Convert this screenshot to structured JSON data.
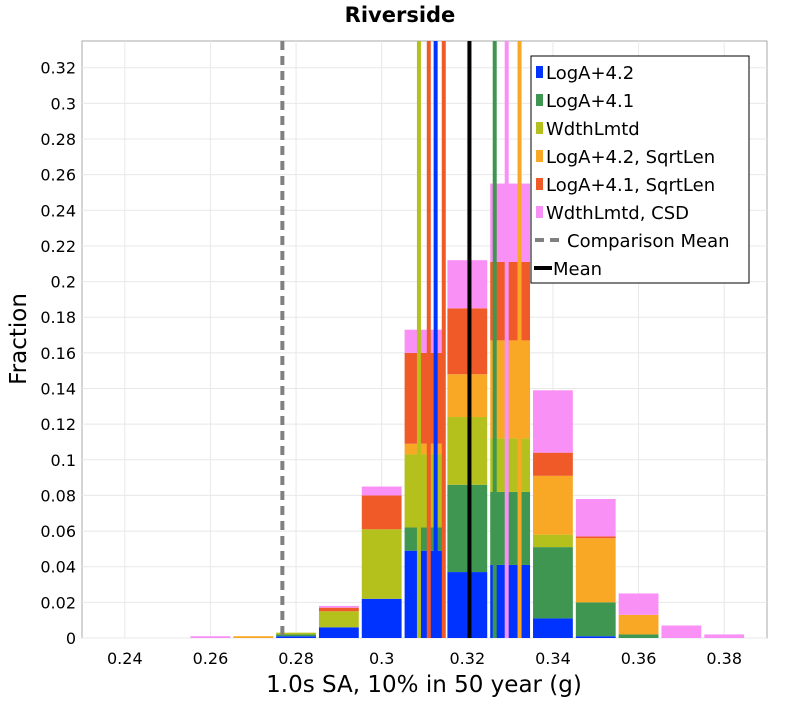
{
  "chart_data": {
    "type": "bar",
    "stacked": true,
    "title": "Riverside",
    "xlabel": "1.0s SA, 10% in 50 year (g)",
    "ylabel": "Fraction",
    "xlim": [
      0.23,
      0.39
    ],
    "ylim": [
      0,
      0.335
    ],
    "xticks": [
      0.24,
      0.26,
      0.28,
      0.3,
      0.32,
      0.34,
      0.36,
      0.38
    ],
    "xtick_labels": [
      "0.24",
      "0.26",
      "0.28",
      "0.3",
      "0.32",
      "0.34",
      "0.36",
      "0.38"
    ],
    "yticks": [
      0,
      0.02,
      0.04,
      0.06,
      0.08,
      0.1,
      0.12,
      0.14,
      0.16,
      0.18,
      0.2,
      0.22,
      0.24,
      0.26,
      0.28,
      0.3,
      0.32
    ],
    "ytick_labels": [
      "0",
      "0.02",
      "0.04",
      "0.06",
      "0.08",
      "0.1",
      "0.12",
      "0.14",
      "0.16",
      "0.18",
      "0.2",
      "0.22",
      "0.24",
      "0.26",
      "0.28",
      "0.3",
      "0.32"
    ],
    "grid": true,
    "legend_position": "top-right",
    "bin_width": 0.01,
    "bin_centers": [
      0.24,
      0.25,
      0.26,
      0.27,
      0.28,
      0.29,
      0.3,
      0.31,
      0.32,
      0.33,
      0.34,
      0.35,
      0.36,
      0.37,
      0.38
    ],
    "series": [
      {
        "name": "LogA+4.2",
        "color": "#0033ff",
        "values": [
          0,
          0,
          0,
          0,
          0.001,
          0.006,
          0.022,
          0.049,
          0.037,
          0.041,
          0.011,
          0.001,
          0,
          0,
          0
        ]
      },
      {
        "name": "LogA+4.1",
        "color": "#3f9650",
        "values": [
          0,
          0,
          0,
          0,
          0.001,
          0,
          0,
          0.013,
          0.049,
          0.041,
          0.04,
          0.019,
          0.002,
          0,
          0
        ]
      },
      {
        "name": "WdthLmtd",
        "color": "#b4c01c",
        "values": [
          0,
          0,
          0,
          0,
          0.001,
          0.009,
          0.039,
          0.041,
          0.038,
          0.03,
          0.007,
          0,
          0,
          0,
          0
        ]
      },
      {
        "name": "LogA+4.2, SqrtLen",
        "color": "#f9a825",
        "values": [
          0,
          0,
          0,
          0.001,
          0,
          0,
          0,
          0.006,
          0.024,
          0.055,
          0.033,
          0.036,
          0.011,
          0,
          0
        ]
      },
      {
        "name": "LogA+4.1, SqrtLen",
        "color": "#f05a28",
        "values": [
          0,
          0,
          0,
          0,
          0,
          0.002,
          0.019,
          0.051,
          0.037,
          0.044,
          0.013,
          0.001,
          0,
          0,
          0
        ]
      },
      {
        "name": "WdthLmtd, CSD",
        "color": "#f990f5",
        "values": [
          0,
          0,
          0.001,
          0,
          0,
          0.001,
          0.005,
          0.013,
          0.027,
          0.044,
          0.035,
          0.021,
          0.012,
          0.007,
          0.002
        ]
      }
    ],
    "mean_lines": [
      {
        "series": "WdthLmtd",
        "x": 0.3087,
        "color": "#b4c01c"
      },
      {
        "series": "LogA+4.1, SqrtLen",
        "x": 0.311,
        "color": "#f05a28"
      },
      {
        "series": "LogA+4.2",
        "x": 0.3126,
        "color": "#0033ff"
      },
      {
        "series": "LogA+4.1, SqrtLen",
        "x": 0.3145,
        "color": "#f05a28"
      },
      {
        "series": "LogA+4.1",
        "x": 0.3264,
        "color": "#3f9650"
      },
      {
        "series": "WdthLmtd, CSD",
        "x": 0.3292,
        "color": "#f990f5"
      },
      {
        "series": "LogA+4.2, SqrtLen",
        "x": 0.3322,
        "color": "#f9a825"
      }
    ],
    "mean": {
      "name": "Mean",
      "x": 0.3205,
      "color": "#000000"
    },
    "comparison_mean": {
      "name": "Comparison Mean",
      "x": 0.2768,
      "color": "#808080"
    }
  }
}
